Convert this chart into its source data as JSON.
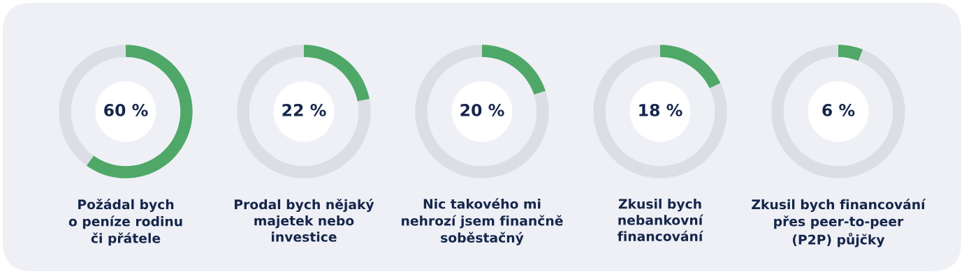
{
  "chart_data": [
    {
      "type": "donut",
      "title": "Požádal bych\no peníze rodinu\nči přátele",
      "categories": [
        null,
        null
      ],
      "values": [
        60,
        40
      ],
      "colors": [
        "#4fa868",
        "#dcdee6"
      ],
      "value_labels": [
        "60 %",
        null
      ]
    },
    {
      "type": "donut",
      "title": "Prodal bych nějaký\nmajetek nebo\ninvestice",
      "categories": [
        null,
        null
      ],
      "values": [
        22,
        78
      ],
      "colors": [
        "#4fa868",
        "#dcdee6"
      ],
      "value_labels": [
        "22 %",
        null
      ]
    },
    {
      "type": "donut",
      "title": "Nic takového mi\nnehrozí jsem finančně\nsoběstačný",
      "categories": [
        null,
        null
      ],
      "values": [
        20,
        80
      ],
      "colors": [
        "#4fa868",
        "#dcdee6"
      ],
      "value_labels": [
        "20 %",
        null
      ]
    },
    {
      "type": "donut",
      "title": "Zkusil bych\nnebankovní\nfinancování",
      "categories": [
        null,
        null
      ],
      "values": [
        18,
        82
      ],
      "colors": [
        "#4fa868",
        "#dcdee6"
      ],
      "value_labels": [
        "18 %",
        null
      ]
    },
    {
      "type": "donut",
      "title": "Zkusil bych financování\npřes peer-to-peer\n(P2P) půjčky",
      "categories": [
        null,
        null
      ],
      "values": [
        6,
        94
      ],
      "colors": [
        "#4fa868",
        "#dcdee6"
      ],
      "value_labels": [
        "6 %",
        null
      ]
    }
  ]
}
